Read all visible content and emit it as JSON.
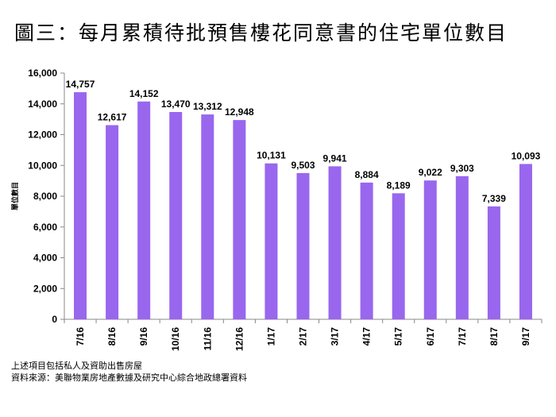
{
  "title": "圖三：每月累積待批預售樓花同意書的住宅單位數目",
  "footnotes": [
    "上述項目包括私人及資助出售房屋",
    "資料來源：美聯物業房地產數據及研究中心綜合地政總署資料"
  ],
  "chart_data": {
    "type": "bar",
    "title": "圖三：每月累積待批預售樓花同意書的住宅單位數目",
    "xlabel": "",
    "ylabel": "單位數目",
    "categories": [
      "7/16",
      "8/16",
      "9/16",
      "10/16",
      "11/16",
      "12/16",
      "1/17",
      "2/17",
      "3/17",
      "4/17",
      "5/17",
      "6/17",
      "7/17",
      "8/17",
      "9/17"
    ],
    "values": [
      14757,
      12617,
      14152,
      13470,
      13312,
      12948,
      10131,
      9503,
      9941,
      8884,
      8189,
      9022,
      9303,
      7339,
      10093
    ],
    "data_labels": [
      "14,757",
      "12,617",
      "14,152",
      "13,470",
      "13,312",
      "12,948",
      "10,131",
      "9,503",
      "9,941",
      "8,884",
      "8,189",
      "9,022",
      "9,303",
      "7,339",
      "10,093"
    ],
    "ylim": [
      0,
      16000
    ],
    "yticks": [
      0,
      2000,
      4000,
      6000,
      8000,
      10000,
      12000,
      14000,
      16000
    ],
    "ytick_labels": [
      "0",
      "2,000",
      "4,000",
      "6,000",
      "8,000",
      "10,000",
      "12,000",
      "14,000",
      "16,000"
    ],
    "grid": false,
    "color": "#9966ee"
  }
}
